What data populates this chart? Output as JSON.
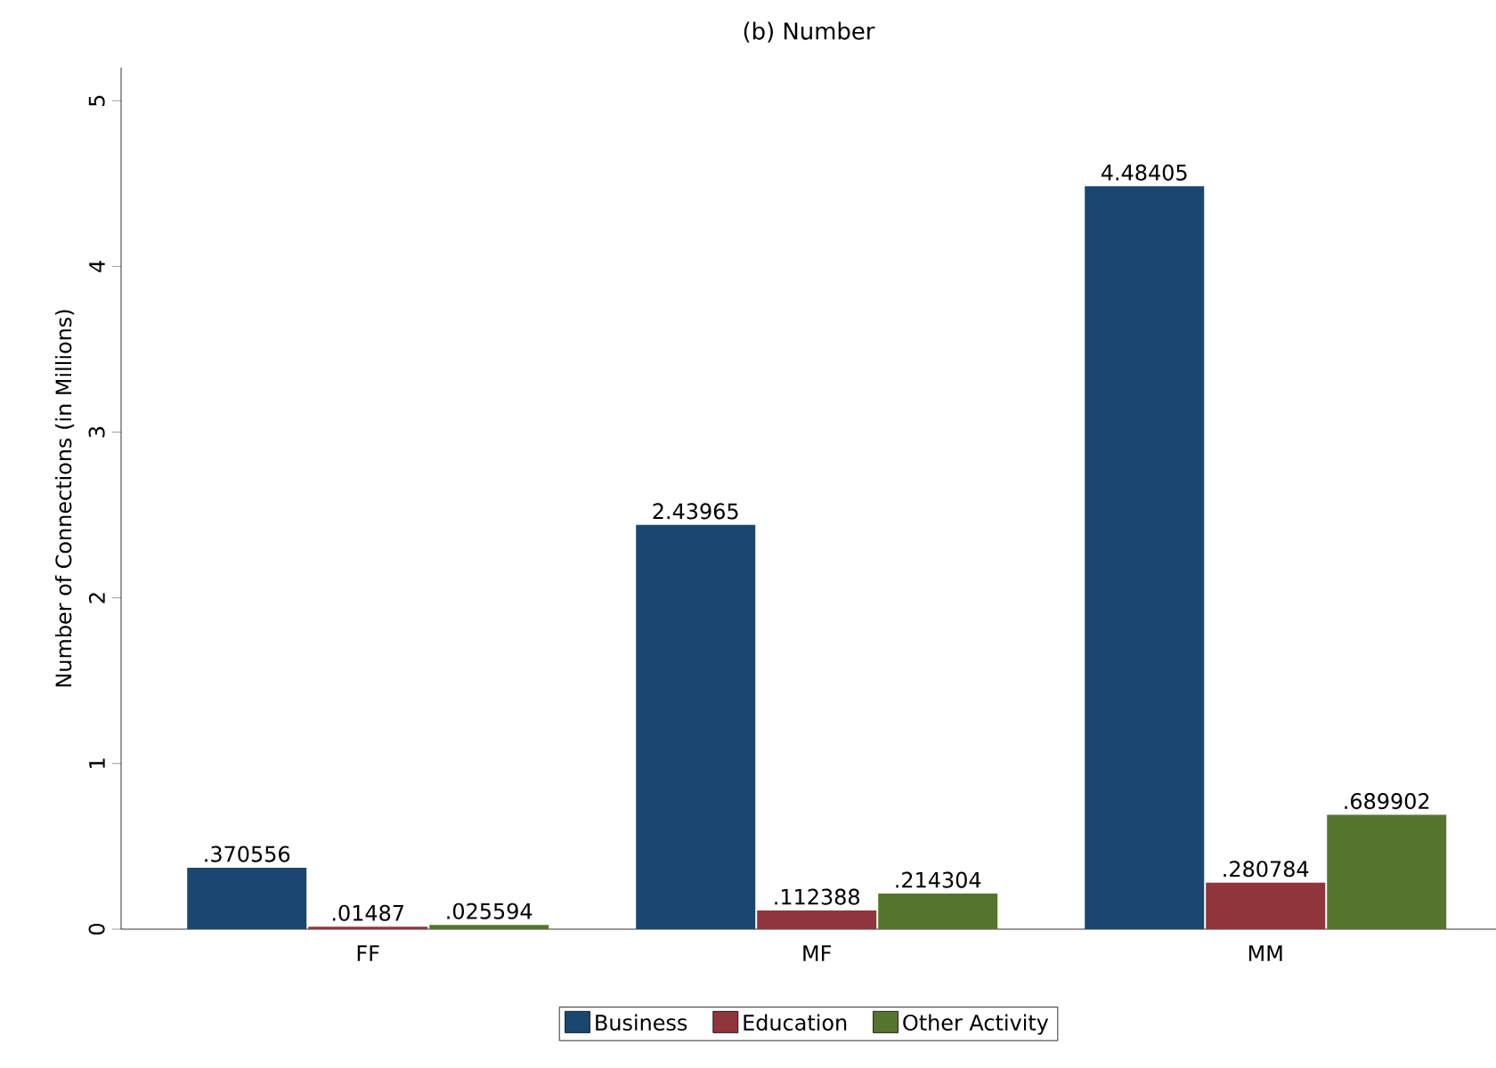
{
  "chart_data": {
    "type": "bar",
    "title": "(b) Number",
    "ylabel": "Number of Connections (in Millions)",
    "categories": [
      "FF",
      "MF",
      "MM"
    ],
    "series": [
      {
        "name": "Business",
        "color": "#1a476f",
        "values": [
          0.370556,
          2.43965,
          4.48405
        ],
        "value_labels": [
          ".370556",
          "2.43965",
          "4.48405"
        ]
      },
      {
        "name": "Education",
        "color": "#90353b",
        "values": [
          0.01487,
          0.112388,
          0.280784
        ],
        "value_labels": [
          ".01487",
          ".112388",
          ".280784"
        ]
      },
      {
        "name": "Other Activity",
        "color": "#55752f",
        "values": [
          0.025594,
          0.214304,
          0.689902
        ],
        "value_labels": [
          ".025594",
          ".214304",
          ".689902"
        ]
      }
    ],
    "ylim": [
      0,
      5.2
    ],
    "yticks": [
      0,
      1,
      2,
      3,
      4,
      5
    ],
    "legend": "bottom"
  }
}
